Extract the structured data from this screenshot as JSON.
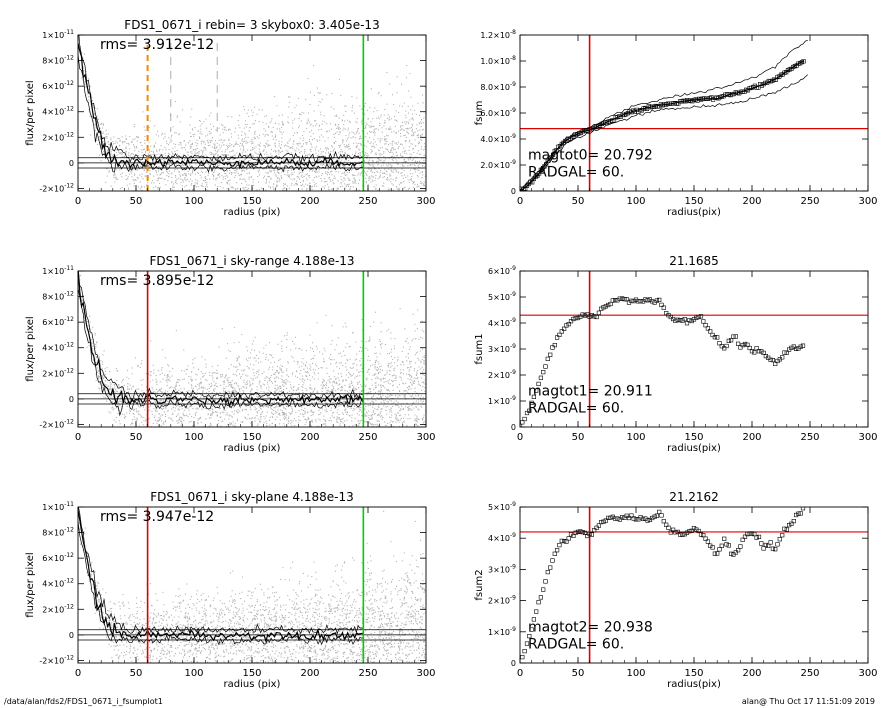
{
  "footer": {
    "left": "/data/alan/fds2/FDS1_0671_i_fsumplot1",
    "right": "alan@  Thu Oct 17 11:51:09 2019"
  },
  "colors": {
    "scatter": "#b4b4b4",
    "red": "#e00000",
    "green": "#00cc00",
    "orange": "#f08a00",
    "axis": "#000000"
  },
  "chart_data": [
    {
      "id": "flux_top",
      "type": "scatter",
      "title": "FDS1_0671_i rebin= 3    skybox0:  3.405e-13",
      "xlabel": "radius (pix)",
      "ylabel": "flux/per pixel",
      "xlim": [
        0,
        300
      ],
      "ylim": [
        -2.2e-12,
        1e-11
      ],
      "xticks": [
        0,
        50,
        100,
        150,
        200,
        250,
        300
      ],
      "yticks": [
        -2e-12,
        0,
        2e-12,
        4e-12,
        6e-12,
        8e-12,
        1e-11
      ],
      "ytick_labels": [
        "-2×10",
        "0",
        "2×10",
        "4×10",
        "6×10",
        "8×10",
        "1×10"
      ],
      "ytick_exponents": [
        "-12",
        "",
        "-12",
        "-12",
        "-12",
        "-12",
        "-11"
      ],
      "annotation": "rms= 3.912e-12",
      "horizontal_lines": [
        0,
        4e-13,
        -4e-13
      ],
      "vlines": [
        {
          "x": 60,
          "color": "#f08a00",
          "style": "dashed-heavy"
        },
        {
          "x": 80,
          "color": "#999999",
          "style": "dashed"
        },
        {
          "x": 120,
          "color": "#999999",
          "style": "dashed"
        },
        {
          "x": 246,
          "color": "#00cc00",
          "style": "solid"
        }
      ],
      "profile": {
        "x": [
          0,
          3,
          6,
          9,
          12,
          15,
          18,
          21,
          24,
          27,
          30,
          35,
          40,
          45,
          50,
          55,
          60,
          70,
          80,
          90,
          100,
          120,
          140,
          160,
          180,
          200,
          220,
          240,
          246
        ],
        "y": [
          9.6e-12,
          7.8e-12,
          6.6e-12,
          5.4e-12,
          4.3e-12,
          3.2e-12,
          2.4e-12,
          1.7e-12,
          1.1e-12,
          7e-13,
          4e-13,
          1e-13,
          3e-13,
          -2e-13,
          2e-13,
          -1e-13,
          2e-13,
          -1e-13,
          2e-13,
          0,
          1e-13,
          -1e-13,
          1e-13,
          0,
          1e-13,
          -1e-13,
          1e-13,
          0,
          1e-13
        ]
      }
    },
    {
      "id": "fsum0",
      "type": "line",
      "title": "",
      "xlabel": "radius(pix)",
      "ylabel": "fsum",
      "xlim": [
        0,
        300
      ],
      "ylim": [
        0,
        1.2e-08
      ],
      "xticks": [
        0,
        50,
        100,
        150,
        200,
        250,
        300
      ],
      "yticks": [
        0,
        2e-09,
        4e-09,
        6e-09,
        8e-09,
        1e-08,
        1.2e-08
      ],
      "ytick_labels": [
        "0",
        "2.0×10",
        "4.0×10",
        "6.0×10",
        "8.0×10",
        "1.0×10",
        "1.2×10"
      ],
      "ytick_exponents": [
        "",
        "-9",
        "-9",
        "-9",
        "-9",
        "-8",
        "-8"
      ],
      "annotations": [
        "magtot0=  20.792",
        "RADGAL=     60."
      ],
      "red_hline": 4.8e-09,
      "red_vline": 60,
      "series": [
        {
          "x": [
            0,
            5,
            10,
            15,
            20,
            25,
            30,
            35,
            40,
            45,
            50,
            55,
            60,
            70,
            80,
            90,
            100,
            110,
            120,
            130,
            140,
            150,
            160,
            170,
            180,
            190,
            200,
            210,
            220,
            230,
            240,
            245
          ],
          "y": [
            0,
            3e-10,
            7e-10,
            1.2e-09,
            1.8e-09,
            2.4e-09,
            3e-09,
            3.5e-09,
            3.9e-09,
            4.2e-09,
            4.4e-09,
            4.6e-09,
            4.7e-09,
            5.1e-09,
            5.5e-09,
            5.9e-09,
            6.2e-09,
            6.4e-09,
            6.6e-09,
            6.7e-09,
            6.9e-09,
            7e-09,
            7.1e-09,
            7.1e-09,
            7.4e-09,
            7.6e-09,
            7.9e-09,
            8.2e-09,
            8.6e-09,
            9.2e-09,
            9.8e-09,
            1e-08
          ]
        },
        {
          "x": [
            0,
            20,
            40,
            60,
            80,
            100,
            120,
            140,
            160,
            180,
            200,
            220,
            240,
            248
          ],
          "y": [
            0,
            1.9e-09,
            4.1e-09,
            4.9e-09,
            5.8e-09,
            6.6e-09,
            7e-09,
            7.4e-09,
            7.7e-09,
            8.1e-09,
            8.7e-09,
            9.6e-09,
            1.12e-08,
            1.16e-08
          ]
        },
        {
          "x": [
            0,
            20,
            40,
            60,
            80,
            100,
            120,
            140,
            160,
            180,
            200,
            220,
            240,
            248
          ],
          "y": [
            0,
            1.7e-09,
            3.7e-09,
            4.5e-09,
            5.2e-09,
            5.8e-09,
            6.2e-09,
            6.4e-09,
            6.5e-09,
            6.7e-09,
            7.1e-09,
            7.6e-09,
            8.4e-09,
            8.9e-09
          ]
        }
      ]
    },
    {
      "id": "flux_mid",
      "type": "scatter",
      "title": "FDS1_0671_i sky-range  4.188e-13",
      "xlabel": "radius (pix)",
      "ylabel": "flux/per pixel",
      "xlim": [
        0,
        300
      ],
      "ylim": [
        -2.2e-12,
        1e-11
      ],
      "xticks": [
        0,
        50,
        100,
        150,
        200,
        250,
        300
      ],
      "yticks": [
        -2e-12,
        0,
        2e-12,
        4e-12,
        6e-12,
        8e-12,
        1e-11
      ],
      "ytick_labels": [
        "-2×10",
        "0",
        "2×10",
        "4×10",
        "6×10",
        "8×10",
        "1×10"
      ],
      "ytick_exponents": [
        "-12",
        "",
        "-12",
        "-12",
        "-12",
        "-12",
        "-11"
      ],
      "annotation": "rms= 3.895e-12",
      "horizontal_lines": [
        0,
        4e-13,
        -4e-13
      ],
      "vlines": [
        {
          "x": 60,
          "color": "#e00000",
          "style": "solid"
        },
        {
          "x": 246,
          "color": "#00cc00",
          "style": "solid"
        }
      ],
      "profile": {
        "x": [
          0,
          3,
          6,
          9,
          12,
          15,
          18,
          21,
          24,
          27,
          30,
          35,
          40,
          45,
          50,
          55,
          60,
          70,
          80,
          90,
          100,
          120,
          140,
          160,
          180,
          200,
          220,
          240,
          246
        ],
        "y": [
          9.5e-12,
          7.7e-12,
          6.5e-12,
          5.3e-12,
          4.2e-12,
          3.1e-12,
          2.3e-12,
          1.6e-12,
          1e-12,
          6e-13,
          3e-13,
          0,
          2e-13,
          -3e-13,
          1e-13,
          -2e-13,
          1e-13,
          -2e-13,
          1e-13,
          -1e-13,
          0,
          -2e-13,
          0,
          -1e-13,
          0,
          -2e-13,
          0,
          -1e-13,
          0
        ]
      }
    },
    {
      "id": "fsum1",
      "type": "scatter",
      "title": "21.1685",
      "xlabel": "radius(pix)",
      "ylabel": "fsum1",
      "xlim": [
        0,
        300
      ],
      "ylim": [
        0,
        6e-09
      ],
      "xticks": [
        0,
        50,
        100,
        150,
        200,
        250,
        300
      ],
      "yticks": [
        0,
        1e-09,
        2e-09,
        3e-09,
        4e-09,
        5e-09,
        6e-09
      ],
      "ytick_labels": [
        "0",
        "1×10",
        "2×10",
        "3×10",
        "4×10",
        "5×10",
        "6×10"
      ],
      "ytick_exponents": [
        "",
        "-9",
        "-9",
        "-9",
        "-9",
        "-9",
        "-9"
      ],
      "annotations": [
        "magtot1=  20.911",
        "RADGAL=     60."
      ],
      "red_hline": 4.3e-09,
      "red_vline": 60,
      "series": [
        {
          "x": [
            0,
            5,
            10,
            15,
            20,
            25,
            30,
            35,
            40,
            45,
            50,
            55,
            60,
            65,
            70,
            75,
            80,
            85,
            90,
            95,
            100,
            105,
            110,
            115,
            120,
            125,
            130,
            135,
            140,
            145,
            150,
            155,
            160,
            165,
            170,
            175,
            180,
            185,
            190,
            195,
            200,
            205,
            210,
            215,
            220,
            225,
            230,
            235,
            240,
            245
          ],
          "y": [
            0,
            4e-10,
            9e-10,
            1.5e-09,
            2.1e-09,
            2.7e-09,
            3.2e-09,
            3.6e-09,
            3.9e-09,
            4.1e-09,
            4.2e-09,
            4.3e-09,
            4.3e-09,
            4.2e-09,
            4.5e-09,
            4.7e-09,
            4.8e-09,
            4.9e-09,
            4.9e-09,
            4.8e-09,
            4.9e-09,
            4.8e-09,
            4.9e-09,
            4.8e-09,
            4.9e-09,
            4.5e-09,
            4.2e-09,
            4.1e-09,
            4.1e-09,
            4e-09,
            4.1e-09,
            4.3e-09,
            3.9e-09,
            3.6e-09,
            3.4e-09,
            3e-09,
            3.3e-09,
            3.5e-09,
            3.1e-09,
            3.2e-09,
            2.9e-09,
            3e-09,
            2.8e-09,
            2.6e-09,
            2.5e-09,
            2.7e-09,
            2.9e-09,
            3.1e-09,
            3e-09,
            3.1e-09
          ]
        }
      ]
    },
    {
      "id": "flux_bot",
      "type": "scatter",
      "title": "FDS1_0671_i sky-plane  4.188e-13",
      "xlabel": "radius (pix)",
      "ylabel": "flux/per pixel",
      "xlim": [
        0,
        300
      ],
      "ylim": [
        -2.2e-12,
        1e-11
      ],
      "xticks": [
        0,
        50,
        100,
        150,
        200,
        250,
        300
      ],
      "yticks": [
        -2e-12,
        0,
        2e-12,
        4e-12,
        6e-12,
        8e-12,
        1e-11
      ],
      "ytick_labels": [
        "-2×10",
        "0",
        "2×10",
        "4×10",
        "6×10",
        "8×10",
        "1×10"
      ],
      "ytick_exponents": [
        "-12",
        "",
        "-12",
        "-12",
        "-12",
        "-12",
        "-11"
      ],
      "annotation": "rms= 3.947e-12",
      "horizontal_lines": [
        0,
        4e-13,
        -4e-13
      ],
      "vlines": [
        {
          "x": 60,
          "color": "#e00000",
          "style": "solid"
        },
        {
          "x": 246,
          "color": "#00cc00",
          "style": "solid"
        }
      ],
      "profile": {
        "x": [
          0,
          3,
          6,
          9,
          12,
          15,
          18,
          21,
          24,
          27,
          30,
          35,
          40,
          45,
          50,
          55,
          60,
          70,
          80,
          90,
          100,
          120,
          140,
          160,
          180,
          200,
          220,
          240,
          246
        ],
        "y": [
          9.5e-12,
          7.8e-12,
          6.6e-12,
          5.4e-12,
          4.2e-12,
          3.2e-12,
          2.4e-12,
          1.6e-12,
          1e-12,
          6e-13,
          3e-13,
          0,
          2e-13,
          -2e-13,
          1e-13,
          -2e-13,
          1e-13,
          -1e-13,
          1e-13,
          0,
          1e-13,
          -1e-13,
          0,
          -1e-13,
          1e-13,
          -1e-13,
          0,
          0,
          1e-13
        ]
      }
    },
    {
      "id": "fsum2",
      "type": "scatter",
      "title": "21.2162",
      "xlabel": "radius(pix)",
      "ylabel": "fsum2",
      "xlim": [
        0,
        300
      ],
      "ylim": [
        0,
        5e-09
      ],
      "xticks": [
        0,
        50,
        100,
        150,
        200,
        250,
        300
      ],
      "yticks": [
        0,
        1e-09,
        2e-09,
        3e-09,
        4e-09,
        5e-09
      ],
      "ytick_labels": [
        "0",
        "1×10",
        "2×10",
        "3×10",
        "4×10",
        "5×10"
      ],
      "ytick_exponents": [
        "",
        "-9",
        "-9",
        "-9",
        "-9",
        "-9"
      ],
      "annotations": [
        "magtot2=  20.938",
        "RADGAL=     60."
      ],
      "red_hline": 4.2e-09,
      "red_vline": 60,
      "series": [
        {
          "x": [
            0,
            5,
            10,
            15,
            20,
            25,
            30,
            35,
            40,
            45,
            50,
            55,
            60,
            65,
            70,
            75,
            80,
            85,
            90,
            95,
            100,
            105,
            110,
            115,
            120,
            125,
            130,
            135,
            140,
            145,
            150,
            155,
            160,
            165,
            170,
            175,
            180,
            185,
            190,
            195,
            200,
            205,
            210,
            215,
            220,
            225,
            230,
            235,
            240,
            245
          ],
          "y": [
            0,
            5e-10,
            1.1e-09,
            1.8e-09,
            2.4e-09,
            3e-09,
            3.5e-09,
            3.8e-09,
            4e-09,
            4.1e-09,
            4.2e-09,
            4.2e-09,
            4.1e-09,
            4.3e-09,
            4.5e-09,
            4.6e-09,
            4.7e-09,
            4.6e-09,
            4.7e-09,
            4.7e-09,
            4.6e-09,
            4.7e-09,
            4.6e-09,
            4.7e-09,
            4.8e-09,
            4.5e-09,
            4.2e-09,
            4.3e-09,
            4.1e-09,
            4.2e-09,
            4.3e-09,
            4.2e-09,
            4e-09,
            3.7e-09,
            3.5e-09,
            3.9e-09,
            3.7e-09,
            3.4e-09,
            3.8e-09,
            4.1e-09,
            4.2e-09,
            4e-09,
            3.7e-09,
            3.8e-09,
            3.6e-09,
            4.1e-09,
            4.3e-09,
            4.5e-09,
            4.8e-09,
            5e-09
          ]
        }
      ]
    }
  ]
}
